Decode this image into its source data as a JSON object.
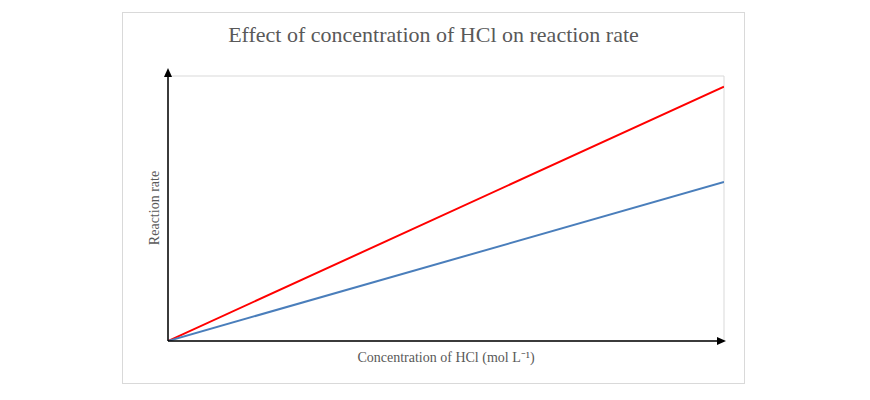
{
  "chart_data": {
    "type": "line",
    "title": "Effect of concentration of HCl on reaction rate",
    "x_label": "Concentration of HCl (mol L⁻¹)",
    "y_label": "Reaction rate",
    "x": [
      0,
      6
    ],
    "series": [
      {
        "color": "#ff0000",
        "values": [
          0,
          4.8
        ]
      },
      {
        "color": "#4a7ebb",
        "values": [
          0,
          3.0
        ]
      }
    ],
    "xlim": [
      0,
      6
    ],
    "xticks": [
      0,
      1,
      2,
      3,
      4,
      5,
      6
    ],
    "ylim": [
      0,
      5
    ],
    "yticks": [
      0,
      1,
      2,
      3,
      4,
      5
    ],
    "grid": true,
    "tick_labels": false
  }
}
